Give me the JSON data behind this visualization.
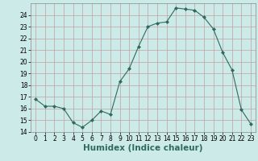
{
  "x": [
    0,
    1,
    2,
    3,
    4,
    5,
    6,
    7,
    8,
    9,
    10,
    11,
    12,
    13,
    14,
    15,
    16,
    17,
    18,
    19,
    20,
    21,
    22,
    23
  ],
  "y": [
    16.8,
    16.2,
    16.2,
    16.0,
    14.8,
    14.4,
    15.0,
    15.8,
    15.5,
    18.3,
    19.4,
    21.3,
    23.0,
    23.3,
    23.4,
    24.6,
    24.5,
    24.4,
    23.8,
    22.8,
    20.8,
    19.3,
    15.9,
    14.7
  ],
  "line_color": "#2e6b5e",
  "marker": "D",
  "marker_size": 2,
  "bg_color": "#cceae7",
  "grid_color": "#c0a0a0",
  "xlabel": "Humidex (Indice chaleur)",
  "ylim": [
    14,
    25
  ],
  "xlim": [
    -0.5,
    23.5
  ],
  "yticks": [
    14,
    15,
    16,
    17,
    18,
    19,
    20,
    21,
    22,
    23,
    24
  ],
  "xticks": [
    0,
    1,
    2,
    3,
    4,
    5,
    6,
    7,
    8,
    9,
    10,
    11,
    12,
    13,
    14,
    15,
    16,
    17,
    18,
    19,
    20,
    21,
    22,
    23
  ],
  "tick_label_fontsize": 5.5,
  "xlabel_fontsize": 7.5
}
